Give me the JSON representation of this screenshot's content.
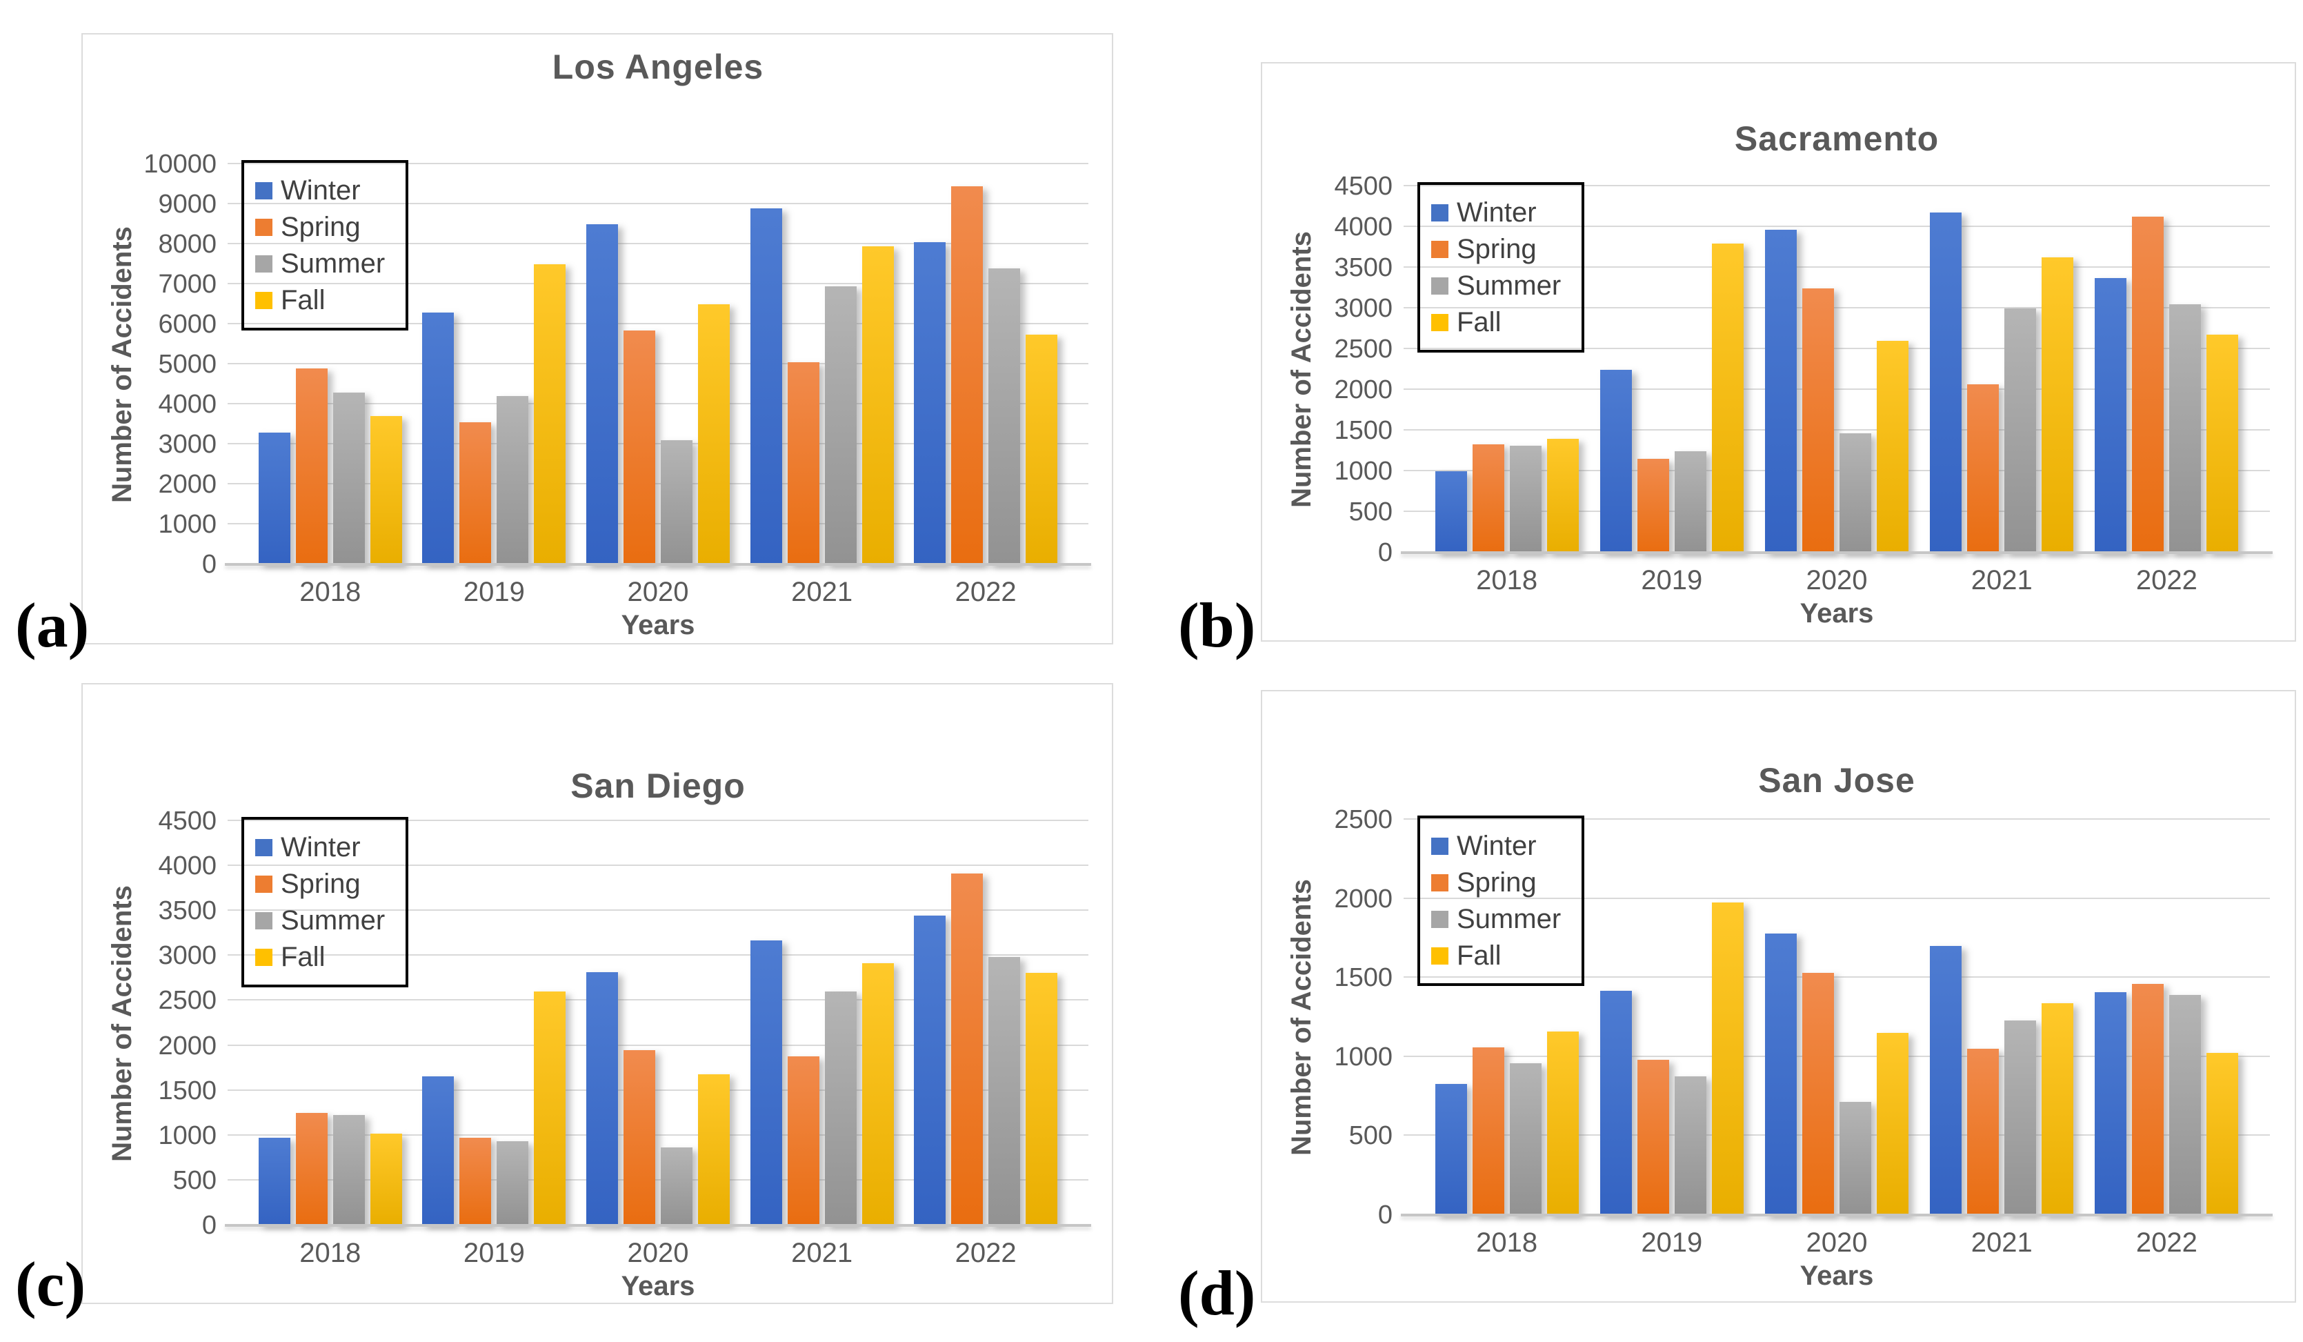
{
  "figure": {
    "description_title_a": "Los Angeles",
    "description_title_b": "Sacramento",
    "description_title_c": "San Diego",
    "description_title_d": "San Jose"
  },
  "palette": {
    "Winter": {
      "swatch": "#4472c4",
      "top": "#4e7cd2",
      "bottom": "#3463c2"
    },
    "Spring": {
      "swatch": "#ed7d31",
      "top": "#f18b4e",
      "bottom": "#e96d10"
    },
    "Summer": {
      "swatch": "#a6a6a6",
      "top": "#b5b5b5",
      "bottom": "#929292"
    },
    "Fall": {
      "swatch": "#ffc000",
      "top": "#ffc92a",
      "bottom": "#e9ae00"
    }
  },
  "chart_data": [
    {
      "type": "bar",
      "panel_label": "(a)",
      "title": "Los Angeles",
      "xlabel": "Years",
      "ylabel": "Number of Accidents",
      "categories": [
        "2018",
        "2019",
        "2020",
        "2021",
        "2022"
      ],
      "ymax": 10000,
      "ystep": 1000,
      "yticks": [
        "10000",
        "9000",
        "8000",
        "7000",
        "6000",
        "5000",
        "4000",
        "3000",
        "2000",
        "1000",
        "0"
      ],
      "legend_position": "top-left",
      "grid": "horizontal",
      "series": [
        {
          "name": "Winter",
          "values": [
            3300,
            6300,
            8500,
            8900,
            8050
          ]
        },
        {
          "name": "Spring",
          "values": [
            4900,
            3550,
            5850,
            5050,
            9450
          ]
        },
        {
          "name": "Summer",
          "values": [
            4300,
            4200,
            3100,
            6950,
            7400
          ]
        },
        {
          "name": "Fall",
          "values": [
            3700,
            7500,
            6500,
            7950,
            5750
          ]
        }
      ]
    },
    {
      "type": "bar",
      "panel_label": "(b)",
      "title": "Sacramento",
      "xlabel": "Years",
      "ylabel": "Number of Accidents",
      "categories": [
        "2018",
        "2019",
        "2020",
        "2021",
        "2022"
      ],
      "ymax": 4500,
      "ystep": 500,
      "yticks": [
        "4500",
        "4000",
        "3500",
        "3000",
        "2500",
        "2000",
        "1500",
        "1000",
        "500",
        "0"
      ],
      "legend_position": "top-left",
      "grid": "horizontal",
      "series": [
        {
          "name": "Winter",
          "values": [
            1000,
            2250,
            3970,
            4180,
            3370
          ]
        },
        {
          "name": "Spring",
          "values": [
            1330,
            1150,
            3250,
            2070,
            4130
          ]
        },
        {
          "name": "Summer",
          "values": [
            1310,
            1250,
            1470,
            3000,
            3050
          ]
        },
        {
          "name": "Fall",
          "values": [
            1400,
            3800,
            2600,
            3630,
            2680
          ]
        }
      ]
    },
    {
      "type": "bar",
      "panel_label": "(c)",
      "title": "San Diego",
      "xlabel": "Years",
      "ylabel": "Number of Accidents",
      "categories": [
        "2018",
        "2019",
        "2020",
        "2021",
        "2022"
      ],
      "ymax": 4500,
      "ystep": 500,
      "yticks": [
        "4500",
        "4000",
        "3500",
        "3000",
        "2500",
        "2000",
        "1500",
        "1000",
        "500",
        "0"
      ],
      "legend_position": "top-left",
      "grid": "horizontal",
      "series": [
        {
          "name": "Winter",
          "values": [
            975,
            1660,
            2820,
            3170,
            3450
          ]
        },
        {
          "name": "Spring",
          "values": [
            1250,
            975,
            1950,
            1880,
            3920
          ]
        },
        {
          "name": "Summer",
          "values": [
            1230,
            940,
            870,
            2600,
            2990
          ]
        },
        {
          "name": "Fall",
          "values": [
            1020,
            2600,
            1680,
            2920,
            2810
          ]
        }
      ]
    },
    {
      "type": "bar",
      "panel_label": "(d)",
      "title": "San Jose",
      "xlabel": "Years",
      "ylabel": "Number of Accidents",
      "categories": [
        "2018",
        "2019",
        "2020",
        "2021",
        "2022"
      ],
      "ymax": 2500,
      "ystep": 500,
      "yticks": [
        "2500",
        "2000",
        "1500",
        "1000",
        "500",
        "0"
      ],
      "legend_position": "top-left",
      "grid": "horizontal",
      "series": [
        {
          "name": "Winter",
          "values": [
            830,
            1420,
            1780,
            1700,
            1410
          ]
        },
        {
          "name": "Spring",
          "values": [
            1060,
            980,
            1530,
            1050,
            1460
          ]
        },
        {
          "name": "Summer",
          "values": [
            960,
            875,
            715,
            1230,
            1390
          ]
        },
        {
          "name": "Fall",
          "values": [
            1160,
            1975,
            1150,
            1340,
            1025
          ]
        }
      ]
    }
  ]
}
